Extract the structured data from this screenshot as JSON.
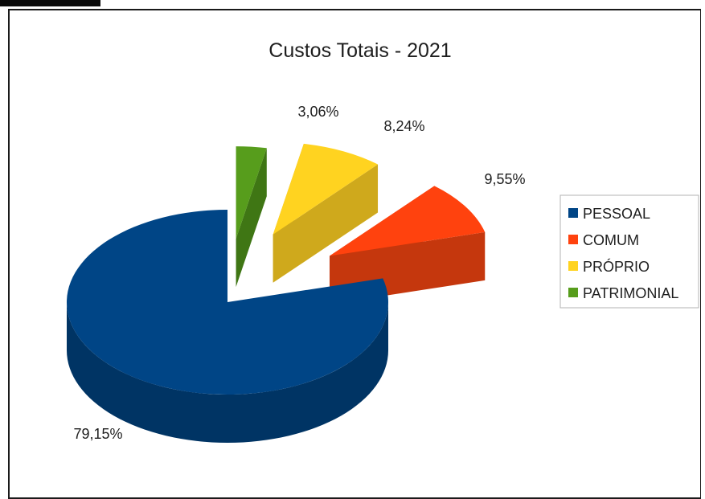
{
  "chart_data": {
    "type": "pie",
    "title": "Custos Totais - 2021",
    "slices": [
      {
        "name": "PESSOAL",
        "value": 79.15,
        "label": "79,15%",
        "color": "#004586",
        "side_color": "#003464"
      },
      {
        "name": "COMUM",
        "value": 9.55,
        "label": "9,55%",
        "color": "#ff420e",
        "side_color": "#c5370d"
      },
      {
        "name": "PRÓPRIO",
        "value": 8.24,
        "label": "8,24%",
        "color": "#ffd320",
        "side_color": "#cfa91c"
      },
      {
        "name": "PATRIMONIAL",
        "value": 3.06,
        "label": "3,06%",
        "color": "#579d1c",
        "side_color": "#3f7614"
      }
    ],
    "legend_position": "right",
    "style": "3d-exploded"
  }
}
